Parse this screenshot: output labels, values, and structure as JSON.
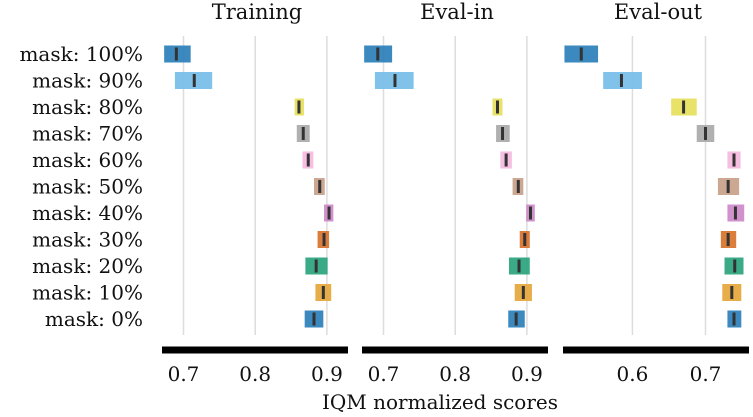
{
  "chart_data": {
    "type": "interval",
    "xlabel": "IQM normalized scores",
    "rows": [
      "mask: 100%",
      "mask: 90%",
      "mask: 80%",
      "mask: 70%",
      "mask: 60%",
      "mask: 50%",
      "mask: 40%",
      "mask: 30%",
      "mask: 20%",
      "mask: 10%",
      "mask: 0%"
    ],
    "colors": [
      "#2a7fb8",
      "#76bde8",
      "#e6e05c",
      "#a9a9a9",
      "#f5b8de",
      "#c8a088",
      "#cc88c9",
      "#d8722a",
      "#2aa37c",
      "#e5a63a",
      "#2a7fb8"
    ],
    "panels": [
      {
        "title": "Training",
        "xlim": [
          0.67,
          0.935
        ],
        "ticks": [
          0.7,
          0.8,
          0.9
        ],
        "tick_labels": [
          "0.7",
          "0.8",
          "0.9"
        ],
        "intervals": [
          {
            "low": 0.673,
            "high": 0.71,
            "median": 0.69
          },
          {
            "low": 0.688,
            "high": 0.74,
            "median": 0.715
          },
          {
            "low": 0.855,
            "high": 0.868,
            "median": 0.861
          },
          {
            "low": 0.858,
            "high": 0.876,
            "median": 0.867
          },
          {
            "low": 0.866,
            "high": 0.881,
            "median": 0.874
          },
          {
            "low": 0.882,
            "high": 0.897,
            "median": 0.89
          },
          {
            "low": 0.896,
            "high": 0.909,
            "median": 0.903
          },
          {
            "low": 0.887,
            "high": 0.903,
            "median": 0.896
          },
          {
            "low": 0.87,
            "high": 0.901,
            "median": 0.885
          },
          {
            "low": 0.884,
            "high": 0.906,
            "median": 0.895
          },
          {
            "low": 0.869,
            "high": 0.895,
            "median": 0.882
          }
        ]
      },
      {
        "title": "Eval-in",
        "xlim": [
          0.67,
          0.935
        ],
        "ticks": [
          0.7,
          0.8,
          0.9
        ],
        "tick_labels": [
          "0.7",
          "0.8",
          "0.9"
        ],
        "intervals": [
          {
            "low": 0.673,
            "high": 0.712,
            "median": 0.692
          },
          {
            "low": 0.688,
            "high": 0.742,
            "median": 0.716
          },
          {
            "low": 0.852,
            "high": 0.866,
            "median": 0.859
          },
          {
            "low": 0.857,
            "high": 0.876,
            "median": 0.866
          },
          {
            "low": 0.863,
            "high": 0.879,
            "median": 0.871
          },
          {
            "low": 0.88,
            "high": 0.895,
            "median": 0.888
          },
          {
            "low": 0.899,
            "high": 0.911,
            "median": 0.905
          },
          {
            "low": 0.89,
            "high": 0.904,
            "median": 0.897
          },
          {
            "low": 0.875,
            "high": 0.904,
            "median": 0.889
          },
          {
            "low": 0.883,
            "high": 0.907,
            "median": 0.895
          },
          {
            "low": 0.874,
            "high": 0.897,
            "median": 0.885
          }
        ]
      },
      {
        "title": "Eval-out",
        "xlim": [
          0.505,
          0.765
        ],
        "ticks": [
          0.6,
          0.7
        ],
        "tick_labels": [
          "0.6",
          "0.7"
        ],
        "intervals": [
          {
            "low": 0.507,
            "high": 0.553,
            "median": 0.53
          },
          {
            "low": 0.56,
            "high": 0.613,
            "median": 0.585
          },
          {
            "low": 0.653,
            "high": 0.688,
            "median": 0.67
          },
          {
            "low": 0.688,
            "high": 0.712,
            "median": 0.7
          },
          {
            "low": 0.73,
            "high": 0.748,
            "median": 0.739
          },
          {
            "low": 0.717,
            "high": 0.746,
            "median": 0.731
          },
          {
            "low": 0.73,
            "high": 0.753,
            "median": 0.741
          },
          {
            "low": 0.721,
            "high": 0.742,
            "median": 0.731
          },
          {
            "low": 0.726,
            "high": 0.752,
            "median": 0.74
          },
          {
            "low": 0.723,
            "high": 0.749,
            "median": 0.736
          },
          {
            "low": 0.73,
            "high": 0.749,
            "median": 0.739
          }
        ]
      }
    ]
  }
}
